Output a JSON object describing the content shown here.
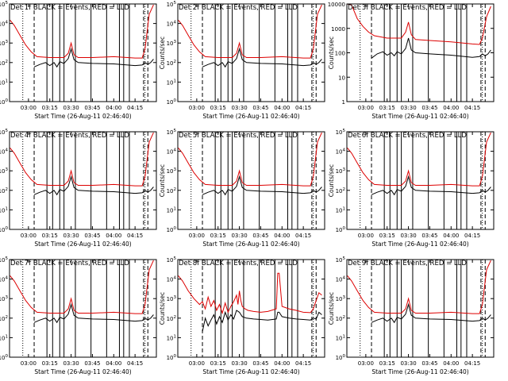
{
  "figure": {
    "background": "#ffffff",
    "black_color": "#000000",
    "red_color": "#dd0000"
  },
  "x_tick_labels": [
    "03:00",
    "03:15",
    "03:30",
    "03:45",
    "04:00",
    "04:15"
  ],
  "x_tick_minutes": [
    180,
    195,
    210,
    225,
    240,
    255
  ],
  "xlim_minutes": [
    166.67,
    270
  ],
  "xlabel": "Start Time (26-Aug-11 02:46:40)",
  "ylabel": "Counts/sec",
  "vertical_markers": {
    "dotted": [
      176,
      262
    ],
    "dashed": [
      184,
      261,
      264
    ],
    "solid": [
      193,
      197,
      202,
      205,
      213,
      224,
      235,
      244,
      247,
      251
    ]
  },
  "chart_data": [
    {
      "type": "line",
      "title": "Det 1f BLACK = Events, RED = LLD",
      "log_y": true,
      "ylim": [
        1,
        100000
      ],
      "y_tick_labels": [
        "10^0",
        "10^1",
        "10^2",
        "10^3",
        "10^4",
        "10^5"
      ],
      "y_tick_values": [
        1,
        10,
        100,
        1000,
        10000,
        100000
      ],
      "series": [
        {
          "name": "LLD",
          "color": "#dd0000",
          "x": [
            167,
            170,
            174,
            178,
            182,
            186,
            195,
            205,
            208,
            210,
            212,
            215,
            225,
            240,
            255,
            260,
            262,
            265,
            268
          ],
          "y": [
            15000,
            8000,
            2500,
            800,
            350,
            200,
            180,
            180,
            300,
            1000,
            250,
            180,
            180,
            200,
            170,
            170,
            500,
            30000,
            90000
          ]
        },
        {
          "name": "Events",
          "color": "#000000",
          "x": [
            184,
            188,
            192,
            195,
            198,
            200,
            202,
            205,
            208,
            210,
            212,
            215,
            225,
            240,
            255,
            260,
            262,
            264,
            266,
            268
          ],
          "y": [
            60,
            80,
            100,
            70,
            100,
            60,
            110,
            90,
            160,
            500,
            140,
            100,
            90,
            85,
            70,
            75,
            100,
            80,
            100,
            150
          ]
        }
      ]
    },
    {
      "type": "line",
      "title": "Det 2f BLACK = Events, RED = LLD",
      "log_y": true,
      "ylim": [
        1,
        100000
      ],
      "y_tick_labels": [
        "10^0",
        "10^1",
        "10^2",
        "10^3",
        "10^4",
        "10^5"
      ],
      "y_tick_values": [
        1,
        10,
        100,
        1000,
        10000,
        100000
      ],
      "series": [
        {
          "name": "LLD",
          "color": "#dd0000",
          "x": [
            167,
            170,
            174,
            178,
            182,
            186,
            195,
            205,
            208,
            210,
            212,
            215,
            225,
            240,
            255,
            260,
            262,
            265,
            268
          ],
          "y": [
            15000,
            8000,
            2500,
            800,
            350,
            200,
            180,
            180,
            300,
            1000,
            250,
            180,
            180,
            200,
            170,
            170,
            500,
            30000,
            90000
          ]
        },
        {
          "name": "Events",
          "color": "#000000",
          "x": [
            184,
            188,
            192,
            195,
            198,
            200,
            202,
            205,
            208,
            210,
            212,
            215,
            225,
            240,
            255,
            260,
            262,
            264,
            266,
            268
          ],
          "y": [
            60,
            80,
            100,
            70,
            100,
            60,
            110,
            90,
            160,
            500,
            140,
            100,
            90,
            85,
            70,
            75,
            100,
            80,
            100,
            150
          ]
        }
      ]
    },
    {
      "type": "line",
      "title": "Det 3f BLACK = Events, RED = LLD",
      "log_y": true,
      "ylim": [
        1,
        10000
      ],
      "y_tick_labels": [
        "1",
        "10",
        "100",
        "1000",
        "10000"
      ],
      "y_tick_values": [
        1,
        10,
        100,
        1000,
        10000
      ],
      "series": [
        {
          "name": "LLD",
          "color": "#dd0000",
          "x": [
            167,
            170,
            174,
            178,
            182,
            186,
            195,
            205,
            208,
            210,
            212,
            215,
            225,
            240,
            255,
            260,
            262,
            265,
            268
          ],
          "y": [
            10000,
            9000,
            2500,
            1200,
            700,
            500,
            400,
            400,
            700,
            1800,
            550,
            350,
            320,
            280,
            230,
            220,
            400,
            3000,
            8000
          ]
        },
        {
          "name": "Events",
          "color": "#000000",
          "x": [
            184,
            188,
            192,
            195,
            198,
            200,
            202,
            205,
            208,
            210,
            212,
            215,
            225,
            240,
            255,
            260,
            262,
            264,
            266,
            268
          ],
          "y": [
            60,
            90,
            110,
            80,
            100,
            75,
            110,
            90,
            150,
            400,
            130,
            100,
            90,
            80,
            65,
            70,
            90,
            75,
            90,
            130
          ]
        }
      ]
    },
    {
      "type": "line",
      "title": "Det 4f BLACK = Events, RED = LLD",
      "log_y": true,
      "ylim": [
        1,
        100000
      ],
      "y_tick_labels": [
        "10^0",
        "10^1",
        "10^2",
        "10^3",
        "10^4",
        "10^5"
      ],
      "y_tick_values": [
        1,
        10,
        100,
        1000,
        10000,
        100000
      ],
      "series": [
        {
          "name": "LLD",
          "color": "#dd0000",
          "x": [
            167,
            170,
            174,
            178,
            182,
            186,
            195,
            205,
            208,
            210,
            212,
            215,
            225,
            240,
            255,
            260,
            262,
            265,
            268
          ],
          "y": [
            15000,
            8000,
            2500,
            800,
            350,
            200,
            180,
            180,
            300,
            1000,
            250,
            180,
            180,
            200,
            170,
            170,
            500,
            30000,
            90000
          ]
        },
        {
          "name": "Events",
          "color": "#000000",
          "x": [
            184,
            188,
            192,
            195,
            198,
            200,
            202,
            205,
            208,
            210,
            212,
            215,
            225,
            240,
            255,
            260,
            262,
            264,
            266,
            268
          ],
          "y": [
            60,
            80,
            100,
            70,
            100,
            60,
            110,
            90,
            160,
            500,
            140,
            100,
            90,
            85,
            70,
            75,
            100,
            80,
            100,
            150
          ]
        }
      ]
    },
    {
      "type": "line",
      "title": "Det 5f BLACK = Events, RED = LLD",
      "log_y": true,
      "ylim": [
        1,
        100000
      ],
      "y_tick_labels": [
        "10^0",
        "10^1",
        "10^2",
        "10^3",
        "10^4",
        "10^5"
      ],
      "y_tick_values": [
        1,
        10,
        100,
        1000,
        10000,
        100000
      ],
      "series": [
        {
          "name": "LLD",
          "color": "#dd0000",
          "x": [
            167,
            170,
            174,
            178,
            182,
            186,
            195,
            205,
            208,
            210,
            212,
            215,
            225,
            240,
            255,
            260,
            262,
            265,
            268
          ],
          "y": [
            15000,
            8000,
            2500,
            800,
            350,
            200,
            180,
            180,
            300,
            1000,
            250,
            180,
            180,
            200,
            170,
            170,
            500,
            30000,
            90000
          ]
        },
        {
          "name": "Events",
          "color": "#000000",
          "x": [
            184,
            188,
            192,
            195,
            198,
            200,
            202,
            205,
            208,
            210,
            212,
            215,
            225,
            240,
            255,
            260,
            262,
            264,
            266,
            268
          ],
          "y": [
            60,
            80,
            100,
            70,
            100,
            60,
            110,
            90,
            160,
            500,
            140,
            100,
            90,
            85,
            70,
            75,
            100,
            80,
            100,
            150
          ]
        }
      ]
    },
    {
      "type": "line",
      "title": "Det 6f BLACK = Events, RED = LLD",
      "log_y": true,
      "ylim": [
        1,
        100000
      ],
      "y_tick_labels": [
        "10^0",
        "10^1",
        "10^2",
        "10^3",
        "10^4",
        "10^5"
      ],
      "y_tick_values": [
        1,
        10,
        100,
        1000,
        10000,
        100000
      ],
      "series": [
        {
          "name": "LLD",
          "color": "#dd0000",
          "x": [
            167,
            170,
            174,
            178,
            182,
            186,
            195,
            205,
            208,
            210,
            212,
            215,
            225,
            240,
            255,
            260,
            262,
            265,
            268
          ],
          "y": [
            15000,
            8000,
            2500,
            800,
            350,
            200,
            180,
            180,
            300,
            1000,
            250,
            180,
            180,
            200,
            170,
            170,
            500,
            30000,
            90000
          ]
        },
        {
          "name": "Events",
          "color": "#000000",
          "x": [
            184,
            188,
            192,
            195,
            198,
            200,
            202,
            205,
            208,
            210,
            212,
            215,
            225,
            240,
            255,
            260,
            262,
            264,
            266,
            268
          ],
          "y": [
            60,
            80,
            100,
            70,
            100,
            60,
            110,
            90,
            160,
            500,
            140,
            100,
            90,
            85,
            70,
            75,
            100,
            80,
            100,
            150
          ]
        }
      ]
    },
    {
      "type": "line",
      "title": "Det 7f BLACK = Events, RED = LLD",
      "log_y": true,
      "ylim": [
        1,
        100000
      ],
      "y_tick_labels": [
        "10^0",
        "10^1",
        "10^2",
        "10^3",
        "10^4",
        "10^5"
      ],
      "y_tick_values": [
        1,
        10,
        100,
        1000,
        10000,
        100000
      ],
      "series": [
        {
          "name": "LLD",
          "color": "#dd0000",
          "x": [
            167,
            170,
            174,
            178,
            182,
            186,
            195,
            205,
            208,
            210,
            212,
            215,
            225,
            240,
            255,
            260,
            262,
            265,
            268
          ],
          "y": [
            15000,
            8000,
            2500,
            800,
            350,
            200,
            180,
            180,
            300,
            1000,
            250,
            180,
            180,
            200,
            170,
            170,
            500,
            30000,
            90000
          ]
        },
        {
          "name": "Events",
          "color": "#000000",
          "x": [
            184,
            188,
            192,
            195,
            198,
            200,
            202,
            205,
            208,
            210,
            212,
            215,
            225,
            240,
            255,
            260,
            262,
            264,
            266,
            268
          ],
          "y": [
            60,
            80,
            100,
            70,
            100,
            60,
            110,
            90,
            160,
            500,
            140,
            100,
            90,
            85,
            70,
            75,
            100,
            80,
            100,
            150
          ]
        }
      ]
    },
    {
      "type": "line",
      "title": "Det 8f BLACK = Events, RED = LLD",
      "log_y": true,
      "ylim": [
        1,
        100000
      ],
      "y_tick_labels": [
        "10^0",
        "10^1",
        "10^2",
        "10^3",
        "10^4",
        "10^5"
      ],
      "y_tick_values": [
        1,
        10,
        100,
        1000,
        10000,
        100000
      ],
      "series": [
        {
          "name": "LLD",
          "color": "#dd0000",
          "x": [
            167,
            170,
            174,
            178,
            182,
            184,
            186,
            188,
            190,
            192,
            194,
            196,
            198,
            200,
            202,
            204,
            206,
            208,
            209,
            210,
            211,
            212,
            214,
            216,
            220,
            225,
            230,
            236,
            237,
            238,
            240,
            245,
            250,
            255,
            260,
            262,
            264,
            266,
            268
          ],
          "y": [
            15000,
            8000,
            2500,
            1000,
            500,
            700,
            300,
            1200,
            400,
            800,
            250,
            500,
            180,
            600,
            200,
            400,
            700,
            1500,
            500,
            2500,
            800,
            400,
            300,
            250,
            220,
            200,
            220,
            300,
            20000,
            20000,
            400,
            300,
            250,
            200,
            190,
            300,
            800,
            2000,
            1500
          ]
        },
        {
          "name": "Events",
          "color": "#000000",
          "x": [
            184,
            186,
            188,
            190,
            192,
            194,
            196,
            198,
            200,
            202,
            204,
            206,
            208,
            210,
            212,
            215,
            220,
            225,
            230,
            236,
            237,
            238,
            240,
            245,
            250,
            255,
            260,
            262,
            264,
            266,
            268
          ],
          "y": [
            20,
            100,
            40,
            80,
            150,
            50,
            120,
            60,
            200,
            80,
            150,
            90,
            250,
            200,
            120,
            100,
            90,
            85,
            80,
            90,
            200,
            200,
            120,
            100,
            90,
            85,
            80,
            100,
            90,
            200,
            150
          ]
        }
      ]
    },
    {
      "type": "line",
      "title": "Det 9f BLACK = Events, RED = LLD",
      "log_y": true,
      "ylim": [
        1,
        100000
      ],
      "y_tick_labels": [
        "10^0",
        "10^1",
        "10^2",
        "10^3",
        "10^4",
        "10^5"
      ],
      "y_tick_values": [
        1,
        10,
        100,
        1000,
        10000,
        100000
      ],
      "series": [
        {
          "name": "LLD",
          "color": "#dd0000",
          "x": [
            167,
            170,
            174,
            178,
            182,
            186,
            195,
            205,
            208,
            210,
            212,
            215,
            225,
            240,
            255,
            260,
            262,
            265,
            268
          ],
          "y": [
            15000,
            8000,
            2500,
            800,
            350,
            200,
            180,
            180,
            300,
            1000,
            250,
            180,
            180,
            200,
            170,
            170,
            500,
            30000,
            90000
          ]
        },
        {
          "name": "Events",
          "color": "#000000",
          "x": [
            184,
            188,
            192,
            195,
            198,
            200,
            202,
            205,
            208,
            210,
            212,
            215,
            225,
            240,
            255,
            260,
            262,
            264,
            266,
            268
          ],
          "y": [
            60,
            80,
            100,
            70,
            100,
            60,
            110,
            90,
            160,
            500,
            140,
            100,
            90,
            85,
            70,
            75,
            100,
            80,
            100,
            150
          ]
        }
      ]
    }
  ]
}
